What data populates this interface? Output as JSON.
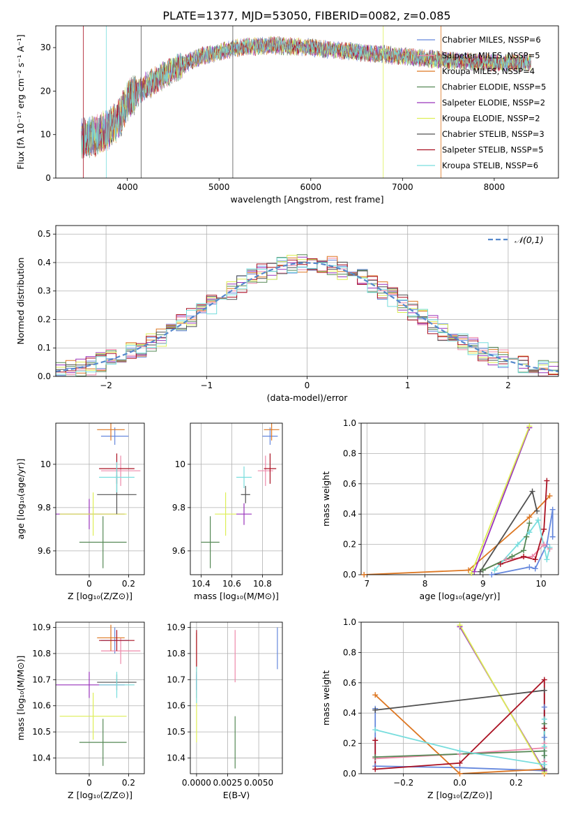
{
  "figure": {
    "title": "PLATE=1377, MJD=53050, FIBERID=0082, z=0.085"
  },
  "colors": {
    "models": [
      "#6688dd",
      "#ee88aa",
      "#dd7722",
      "#558855",
      "#9933bb",
      "#ddee55",
      "#505050",
      "#aa1122",
      "#77dddd"
    ],
    "normal": "#5588cc",
    "grid": "#b0b0b0"
  },
  "chart_data": [
    {
      "type": "line",
      "panel": "spectrum",
      "title": "PLATE=1377, MJD=53050, FIBERID=0082, z=0.085",
      "xlabel": "wavelength [Angstrom, rest frame]",
      "ylabel": "Flux [fλ 10⁻¹⁷ erg cm⁻² s⁻¹ A⁻¹]",
      "xlim": [
        3220,
        8700
      ],
      "ylim": [
        0,
        35
      ],
      "xticks": [
        4000,
        5000,
        6000,
        7000,
        8000
      ],
      "yticks": [
        0,
        10,
        20,
        30
      ],
      "grid": false,
      "legend_position": "top-right",
      "series": [
        {
          "name": "Chabrier MILES, N_SSP=6"
        },
        {
          "name": "Salpeter MILES, N_SSP=5"
        },
        {
          "name": "Kroupa MILES, N_SSP=4"
        },
        {
          "name": "Chabrier ELODIE, N_SSP=5"
        },
        {
          "name": "Salpeter ELODIE, N_SSP=2"
        },
        {
          "name": "Kroupa ELODIE, N_SSP=2"
        },
        {
          "name": "Chabrier STELIB, N_SSP=3"
        },
        {
          "name": "Salpeter STELIB, N_SSP=5"
        },
        {
          "name": "Kroupa STELIB, N_SSP=6"
        }
      ],
      "continuum": {
        "x": [
          3500,
          3700,
          3900,
          4000,
          4200,
          4500,
          4800,
          5200,
          5600,
          6000,
          6500,
          7000,
          7500,
          8000,
          8400
        ],
        "y": [
          9,
          10,
          13,
          18,
          21,
          25,
          28,
          30,
          30.5,
          30,
          29,
          28,
          27,
          26.5,
          26.5
        ]
      }
    },
    {
      "type": "line",
      "panel": "residuals",
      "xlabel": "(data-model)/error",
      "ylabel": "Normed distribution",
      "xlim": [
        -2.5,
        2.5
      ],
      "ylim": [
        0,
        0.53
      ],
      "xticks": [
        -2,
        -1,
        0,
        1,
        2
      ],
      "xtick_labels": [
        "−2",
        "−1",
        "0",
        "1",
        "2"
      ],
      "yticks": [
        0,
        0.1,
        0.2,
        0.3,
        0.4,
        0.5
      ],
      "ytick_labels": [
        "0.0",
        "0.1",
        "0.2",
        "0.3",
        "0.4",
        "0.5"
      ],
      "grid": true,
      "legend_position": "top-right",
      "legend_label": "𝒩(0,1)",
      "bin_width": 0.1
    },
    {
      "type": "scatter",
      "panel": "Z-age",
      "xlabel": "Z [log₁₀(Z/Z⊙)]",
      "ylabel": "age  [log₁₀(age/yr)]",
      "xlim": [
        -0.17,
        0.28
      ],
      "ylim": [
        9.49,
        10.19
      ],
      "xticks": [
        0.0,
        0.2
      ],
      "yticks": [
        9.6,
        9.8,
        10.0
      ],
      "points": [
        {
          "x": 0.13,
          "xerr": 0.07,
          "y": 10.13,
          "yerr": 0.04
        },
        {
          "x": 0.16,
          "xerr": 0.1,
          "y": 9.97,
          "yerr": 0.07
        },
        {
          "x": 0.11,
          "xerr": 0.07,
          "y": 10.16,
          "yerr": 0.05
        },
        {
          "x": 0.07,
          "xerr": 0.12,
          "y": 9.64,
          "yerr": 0.12
        },
        {
          "x": 0.0,
          "xerr": 0.18,
          "y": 9.77,
          "yerr": 0.07
        },
        {
          "x": 0.02,
          "xerr": 0.17,
          "y": 9.77,
          "yerr": 0.1
        },
        {
          "x": 0.14,
          "xerr": 0.1,
          "y": 9.86,
          "yerr": 0.09
        },
        {
          "x": 0.14,
          "xerr": 0.09,
          "y": 9.98,
          "yerr": 0.07
        },
        {
          "x": 0.14,
          "xerr": 0.09,
          "y": 9.94,
          "yerr": 0.07
        }
      ]
    },
    {
      "type": "scatter",
      "panel": "mass-age",
      "xlabel": "mass [log₁₀(M/M⊙)]",
      "ylabel": "",
      "xlim": [
        10.33,
        10.93
      ],
      "ylim": [
        9.49,
        10.19
      ],
      "xticks": [
        10.4,
        10.6,
        10.8
      ],
      "yticks": [
        9.6,
        9.8,
        10.0
      ],
      "points": [
        {
          "x": 10.85,
          "xerr": 0.05,
          "y": 10.13,
          "yerr": 0.04
        },
        {
          "x": 10.82,
          "xerr": 0.05,
          "y": 9.97,
          "yerr": 0.07
        },
        {
          "x": 10.86,
          "xerr": 0.05,
          "y": 10.16,
          "yerr": 0.05
        },
        {
          "x": 10.46,
          "xerr": 0.06,
          "y": 9.64,
          "yerr": 0.12
        },
        {
          "x": 10.68,
          "xerr": 0.05,
          "y": 9.77,
          "yerr": 0.05
        },
        {
          "x": 10.56,
          "xerr": 0.07,
          "y": 9.77,
          "yerr": 0.1
        },
        {
          "x": 10.69,
          "xerr": 0.03,
          "y": 9.86,
          "yerr": 0.04
        },
        {
          "x": 10.85,
          "xerr": 0.04,
          "y": 9.98,
          "yerr": 0.07
        },
        {
          "x": 10.68,
          "xerr": 0.05,
          "y": 9.94,
          "yerr": 0.05
        }
      ]
    },
    {
      "type": "line",
      "panel": "age-weight",
      "xlabel": "age  [log₁₀(age/yr)]",
      "ylabel": "mass weight",
      "xlim": [
        6.9,
        10.3
      ],
      "ylim": [
        0,
        1.0
      ],
      "xticks": [
        7,
        8,
        9,
        10
      ],
      "yticks": [
        0,
        0.2,
        0.4,
        0.6,
        0.8,
        1.0
      ],
      "ytick_labels": [
        "0.0",
        "0.2",
        "0.4",
        "0.6",
        "0.8",
        "1.0"
      ],
      "grid": true,
      "series": [
        {
          "x": [
            9.15,
            9.8,
            9.9,
            10.1,
            10.2,
            10.2
          ],
          "y": [
            0.0,
            0.05,
            0.04,
            0.2,
            0.43,
            0.25
          ]
        },
        {
          "x": [
            9.0,
            9.4,
            9.85,
            10.05,
            10.15
          ],
          "y": [
            0.03,
            0.1,
            0.12,
            0.2,
            0.17
          ]
        },
        {
          "x": [
            6.95,
            8.75,
            9.8,
            10.15
          ],
          "y": [
            0.0,
            0.03,
            0.38,
            0.52
          ]
        },
        {
          "x": [
            9.0,
            9.5,
            9.7,
            9.75,
            9.8
          ],
          "y": [
            0.03,
            0.12,
            0.16,
            0.25,
            0.34
          ]
        },
        {
          "x": [
            8.85,
            9.8
          ],
          "y": [
            0.02,
            0.97
          ]
        },
        {
          "x": [
            8.8,
            9.8
          ],
          "y": [
            0.01,
            0.98
          ]
        },
        {
          "x": [
            8.95,
            9.85,
            9.93
          ],
          "y": [
            0.02,
            0.55,
            0.42
          ]
        },
        {
          "x": [
            9.3,
            9.7,
            9.9,
            10.05,
            10.1
          ],
          "y": [
            0.07,
            0.12,
            0.1,
            0.3,
            0.62
          ]
        },
        {
          "x": [
            9.2,
            9.6,
            9.8,
            9.95,
            10.1,
            10.15
          ],
          "y": [
            0.03,
            0.2,
            0.28,
            0.36,
            0.1,
            0.18
          ]
        }
      ]
    },
    {
      "type": "scatter",
      "panel": "Z-mass",
      "xlabel": "Z [log₁₀(Z/Z⊙)]",
      "ylabel": "mass [log₁₀(M/M⊙)]",
      "xlim": [
        -0.17,
        0.28
      ],
      "ylim": [
        10.34,
        10.92
      ],
      "xticks": [
        0.0,
        0.2
      ],
      "yticks": [
        10.4,
        10.5,
        10.6,
        10.7,
        10.8,
        10.9
      ],
      "points": [
        {
          "x": 0.13,
          "xerr": 0.07,
          "y": 10.85,
          "yerr": 0.05
        },
        {
          "x": 0.16,
          "xerr": 0.1,
          "y": 10.81,
          "yerr": 0.05
        },
        {
          "x": 0.11,
          "xerr": 0.07,
          "y": 10.86,
          "yerr": 0.05
        },
        {
          "x": 0.07,
          "xerr": 0.12,
          "y": 10.46,
          "yerr": 0.09
        },
        {
          "x": 0.0,
          "xerr": 0.18,
          "y": 10.68,
          "yerr": 0.05
        },
        {
          "x": 0.02,
          "xerr": 0.17,
          "y": 10.56,
          "yerr": 0.09
        },
        {
          "x": 0.14,
          "xerr": 0.1,
          "y": 10.69,
          "yerr": 0.03
        },
        {
          "x": 0.14,
          "xerr": 0.09,
          "y": 10.85,
          "yerr": 0.04
        },
        {
          "x": 0.14,
          "xerr": 0.09,
          "y": 10.68,
          "yerr": 0.05
        }
      ]
    },
    {
      "type": "scatter",
      "panel": "EBV-mass",
      "xlabel": "E(B-V)",
      "ylabel": "",
      "xlim": [
        -0.0005,
        0.0069
      ],
      "ylim": [
        10.34,
        10.92
      ],
      "xticks": [
        0.0,
        0.0025,
        0.005
      ],
      "xtick_labels": [
        "0.0000",
        "0.0025",
        "0.0050"
      ],
      "yticks": [
        10.4,
        10.5,
        10.6,
        10.7,
        10.8,
        10.9
      ],
      "points": [
        {
          "x": 0.0065,
          "xerr": 0,
          "y": 10.82,
          "yerr": 0.08
        },
        {
          "x": 0.0031,
          "xerr": 0,
          "y": 10.79,
          "yerr": 0.1
        },
        {
          "x": 0.0,
          "xerr": 0,
          "y": 10.8,
          "yerr": 0.08
        },
        {
          "x": 0.0031,
          "xerr": 0,
          "y": 10.46,
          "yerr": 0.1
        },
        {
          "x": 0.0,
          "xerr": 0,
          "y": 10.68,
          "yerr": 0.05
        },
        {
          "x": 0.0,
          "xerr": 0,
          "y": 10.56,
          "yerr": 0.1
        },
        {
          "x": 0.0,
          "xerr": 0,
          "y": 10.69,
          "yerr": 0.03
        },
        {
          "x": 0.0,
          "xerr": 0,
          "y": 10.82,
          "yerr": 0.07
        },
        {
          "x": 0.0,
          "xerr": 0,
          "y": 10.68,
          "yerr": 0.07
        }
      ]
    },
    {
      "type": "line",
      "panel": "Z-weight",
      "xlabel": "Z [log₁₀(Z/Z⊙)]",
      "ylabel": "mass weight",
      "xlim": [
        -0.35,
        0.35
      ],
      "ylim": [
        0,
        1.0
      ],
      "xticks": [
        -0.2,
        0.0,
        0.2
      ],
      "xtick_labels": [
        "−0.2",
        "0.0",
        "0.2"
      ],
      "yticks": [
        0,
        0.2,
        0.4,
        0.6,
        0.8,
        1.0
      ],
      "ytick_labels": [
        "0.0",
        "0.2",
        "0.4",
        "0.6",
        "0.8",
        "1.0"
      ],
      "grid": true,
      "series": [
        {
          "x": [
            -0.3,
            -0.3,
            0.0,
            0.3,
            0.3,
            0.3
          ],
          "y": [
            0.43,
            0.05,
            0.04,
            0.02,
            0.24,
            0.44
          ]
        },
        {
          "x": [
            -0.3,
            0.0,
            0.3,
            0.3,
            0.3
          ],
          "y": [
            0.1,
            0.13,
            0.17,
            0.08,
            0.2
          ]
        },
        {
          "x": [
            -0.3,
            0.0,
            0.3,
            0.3
          ],
          "y": [
            0.52,
            0.0,
            0.03,
            0.0
          ]
        },
        {
          "x": [
            -0.3,
            0.3,
            0.3,
            0.3,
            0.3
          ],
          "y": [
            0.11,
            0.15,
            0.33,
            0.12,
            0.03
          ]
        },
        {
          "x": [
            0.0,
            0.3
          ],
          "y": [
            0.97,
            0.02
          ]
        },
        {
          "x": [
            0.0,
            0.3
          ],
          "y": [
            0.98,
            0.01
          ]
        },
        {
          "x": [
            -0.3,
            0.3,
            0.3
          ],
          "y": [
            0.42,
            0.55,
            0.03
          ]
        },
        {
          "x": [
            -0.3,
            -0.3,
            0.0,
            0.3,
            0.3
          ],
          "y": [
            0.22,
            0.03,
            0.07,
            0.62,
            0.3
          ]
        },
        {
          "x": [
            -0.3,
            0.0,
            0.3,
            0.3,
            0.3
          ],
          "y": [
            0.29,
            0.15,
            0.06,
            0.36,
            0.18
          ]
        }
      ]
    }
  ]
}
